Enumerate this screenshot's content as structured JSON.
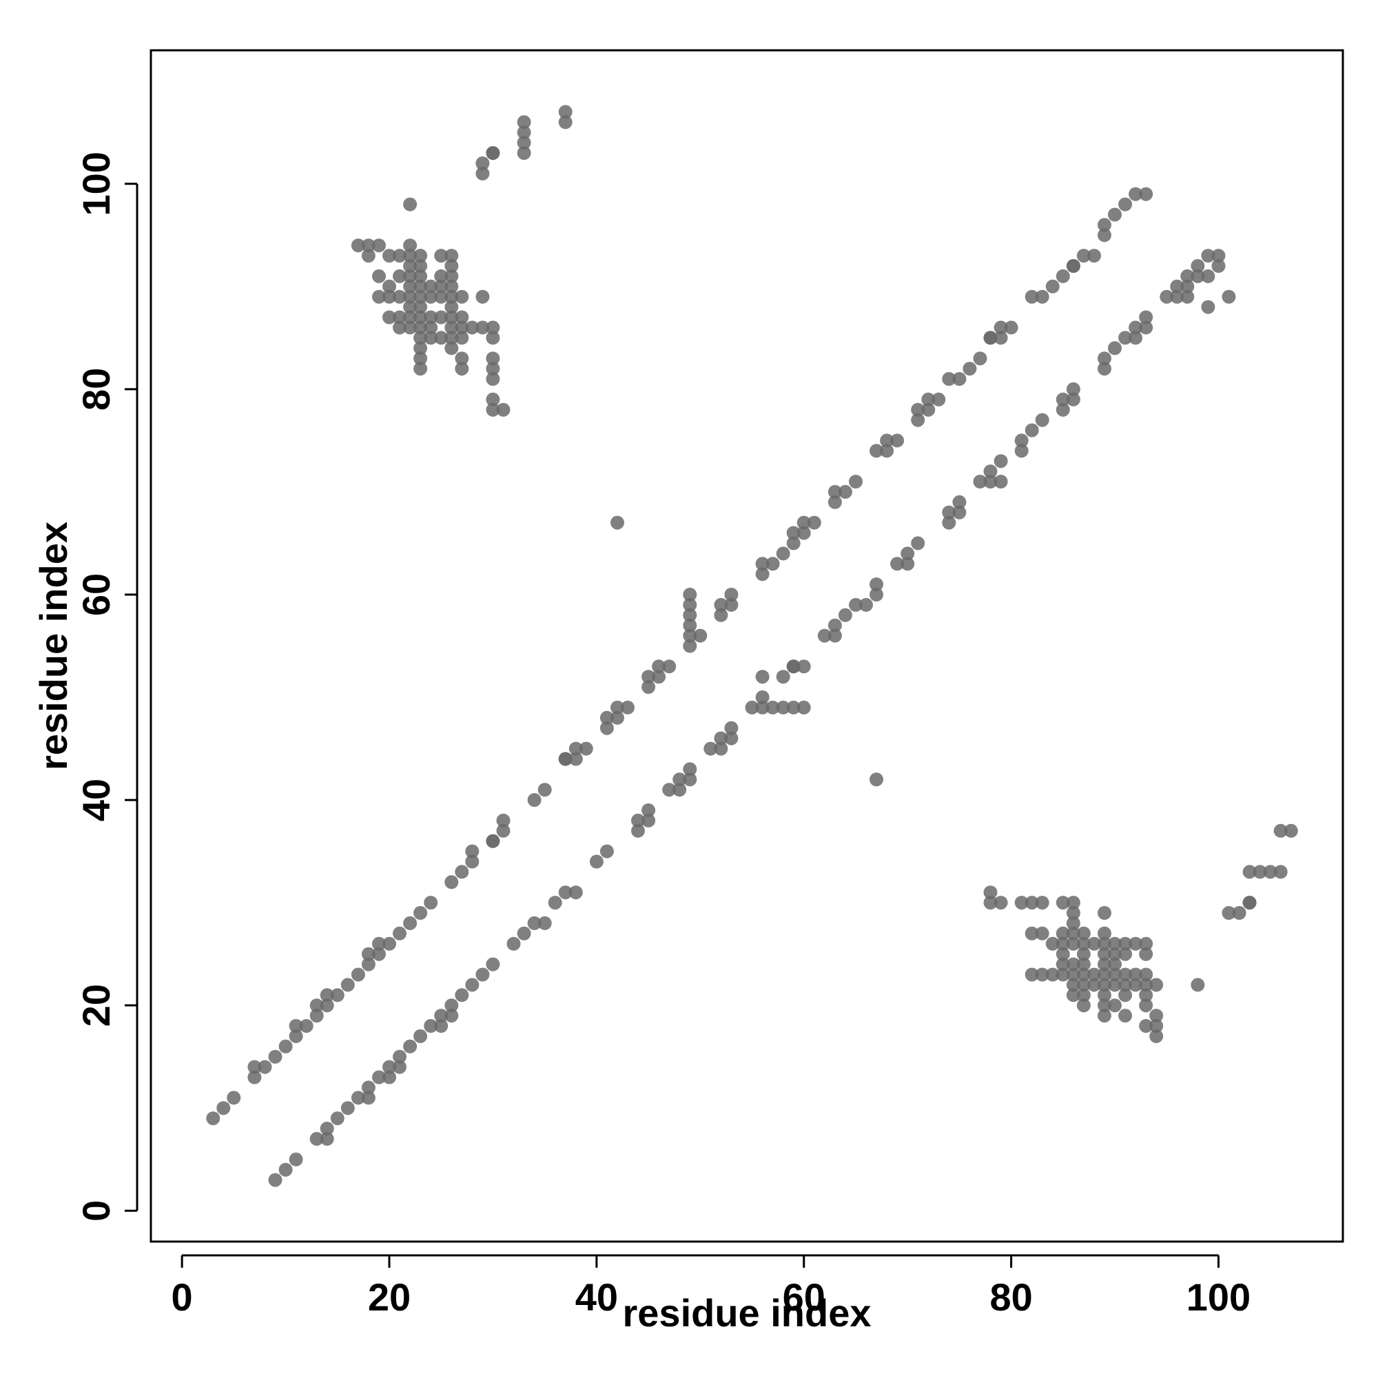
{
  "chart_data": {
    "type": "scatter",
    "title": "",
    "xlabel": "residue index",
    "ylabel": "residue index",
    "xlim": [
      -3,
      112
    ],
    "ylim": [
      -3,
      113
    ],
    "xticks": [
      0,
      20,
      40,
      60,
      80,
      100
    ],
    "yticks": [
      0,
      20,
      40,
      60,
      80,
      100
    ],
    "grid": false,
    "marker_color": "#6a6a6a",
    "marker_opacity": 0.85,
    "frame_color": "#000000",
    "series": [
      {
        "x": [
          3,
          4,
          5,
          7,
          7,
          8,
          9,
          10,
          11,
          11,
          12,
          13,
          13,
          14,
          14,
          15,
          16,
          17,
          18,
          18,
          19,
          19,
          20,
          21,
          22,
          23,
          24,
          26,
          27,
          28,
          28,
          30,
          30,
          31,
          31,
          34,
          35,
          37,
          37,
          38,
          38,
          39,
          41,
          41,
          42,
          42,
          43,
          45,
          45,
          46,
          46,
          47,
          49,
          49,
          49,
          49,
          49,
          49,
          50,
          52,
          52,
          53,
          53,
          56,
          56,
          57,
          58,
          59,
          59,
          60,
          60,
          61,
          63,
          63,
          64,
          65,
          67,
          68,
          68,
          69,
          71,
          71,
          72,
          72,
          73,
          74,
          75,
          76,
          77,
          78,
          78,
          79,
          79,
          80,
          82,
          83,
          84,
          85,
          86,
          86,
          87,
          88,
          89,
          89,
          90,
          91,
          92,
          93
        ],
        "y": [
          9,
          10,
          11,
          13,
          14,
          14,
          15,
          16,
          17,
          18,
          18,
          19,
          20,
          20,
          21,
          21,
          22,
          23,
          24,
          25,
          25,
          26,
          26,
          27,
          28,
          29,
          30,
          32,
          33,
          34,
          35,
          36,
          36,
          37,
          38,
          40,
          41,
          44,
          44,
          44,
          45,
          45,
          47,
          48,
          48,
          49,
          49,
          51,
          52,
          52,
          53,
          53,
          55,
          56,
          57,
          58,
          59,
          60,
          56,
          58,
          59,
          59,
          60,
          62,
          63,
          63,
          64,
          65,
          66,
          66,
          67,
          67,
          69,
          70,
          70,
          71,
          74,
          74,
          75,
          75,
          77,
          78,
          78,
          79,
          79,
          81,
          81,
          82,
          83,
          85,
          85,
          85,
          86,
          86,
          89,
          89,
          90,
          91,
          92,
          92,
          93,
          93,
          95,
          96,
          97,
          98,
          99,
          99
        ]
      },
      {
        "x": [
          9,
          10,
          11,
          13,
          14,
          14,
          15,
          16,
          17,
          18,
          18,
          19,
          20,
          20,
          21,
          21,
          22,
          23,
          24,
          25,
          25,
          26,
          26,
          27,
          28,
          29,
          30,
          32,
          33,
          34,
          35,
          36,
          37,
          38,
          40,
          41,
          44,
          44,
          45,
          45,
          47,
          48,
          48,
          49,
          49,
          51,
          52,
          52,
          53,
          53,
          55,
          56,
          56,
          57,
          58,
          59,
          60,
          56,
          58,
          59,
          59,
          60,
          62,
          63,
          63,
          64,
          65,
          66,
          67,
          67,
          69,
          70,
          70,
          71,
          74,
          74,
          75,
          75,
          77,
          78,
          78,
          79,
          79,
          81,
          81,
          82,
          83,
          85,
          85,
          86,
          86,
          89,
          89,
          90,
          91,
          92,
          92,
          93,
          93,
          95,
          96,
          96,
          97,
          97,
          97,
          98,
          98,
          99,
          99,
          100,
          100,
          101,
          99
        ],
        "y": [
          3,
          4,
          5,
          7,
          7,
          8,
          9,
          10,
          11,
          11,
          12,
          13,
          13,
          14,
          14,
          15,
          16,
          17,
          18,
          18,
          19,
          19,
          20,
          21,
          22,
          23,
          24,
          26,
          27,
          28,
          28,
          30,
          31,
          31,
          34,
          35,
          37,
          38,
          38,
          39,
          41,
          41,
          42,
          42,
          43,
          45,
          45,
          46,
          46,
          47,
          49,
          49,
          50,
          49,
          49,
          49,
          49,
          52,
          52,
          53,
          53,
          53,
          56,
          56,
          57,
          58,
          59,
          59,
          60,
          61,
          63,
          63,
          64,
          65,
          67,
          68,
          68,
          69,
          71,
          71,
          72,
          71,
          73,
          74,
          75,
          76,
          77,
          78,
          79,
          79,
          80,
          82,
          83,
          84,
          85,
          85,
          86,
          86,
          87,
          89,
          89,
          90,
          89,
          90,
          91,
          91,
          92,
          91,
          93,
          92,
          93,
          89,
          88
        ]
      },
      {
        "x": [
          17,
          18,
          18,
          19,
          19,
          19,
          20,
          20,
          20,
          20,
          21,
          21,
          21,
          21,
          21,
          22,
          22,
          22,
          22,
          22,
          22,
          22,
          22,
          22,
          23,
          23,
          23,
          23,
          23,
          23,
          23,
          23,
          23,
          23,
          23,
          23,
          24,
          24,
          24,
          24,
          24,
          25,
          25,
          25,
          25,
          25,
          25,
          26,
          26,
          26,
          26,
          26,
          26,
          26,
          26,
          26,
          26,
          27,
          27,
          27,
          27,
          27,
          27,
          28,
          29,
          29,
          30,
          30,
          30,
          30,
          30,
          30,
          30,
          31,
          22,
          29,
          29,
          30,
          30,
          33,
          33,
          33,
          33,
          37,
          37,
          42
        ],
        "y": [
          94,
          94,
          93,
          94,
          91,
          89,
          93,
          90,
          89,
          87,
          93,
          91,
          89,
          87,
          86,
          94,
          93,
          92,
          91,
          90,
          89,
          88,
          87,
          86,
          93,
          92,
          91,
          90,
          89,
          88,
          87,
          86,
          85,
          84,
          83,
          82,
          90,
          89,
          87,
          86,
          85,
          93,
          91,
          90,
          89,
          87,
          85,
          93,
          92,
          91,
          90,
          89,
          88,
          87,
          86,
          85,
          84,
          89,
          87,
          86,
          85,
          83,
          82,
          86,
          89,
          86,
          86,
          85,
          83,
          82,
          81,
          79,
          78,
          78,
          98,
          101,
          102,
          103,
          103,
          103,
          104,
          105,
          106,
          106,
          107,
          67
        ]
      },
      {
        "x": [
          94,
          94,
          93,
          94,
          91,
          89,
          93,
          90,
          89,
          87,
          93,
          91,
          89,
          87,
          86,
          94,
          93,
          92,
          91,
          90,
          89,
          88,
          87,
          86,
          93,
          92,
          91,
          90,
          89,
          88,
          87,
          86,
          85,
          84,
          83,
          82,
          90,
          89,
          87,
          86,
          85,
          93,
          91,
          90,
          89,
          87,
          85,
          93,
          92,
          91,
          90,
          89,
          88,
          87,
          86,
          85,
          84,
          89,
          87,
          86,
          85,
          83,
          82,
          86,
          89,
          86,
          86,
          85,
          83,
          82,
          81,
          79,
          78,
          78,
          98,
          101,
          102,
          103,
          103,
          103,
          104,
          105,
          106,
          106,
          107,
          67
        ],
        "y": [
          17,
          18,
          18,
          19,
          19,
          19,
          20,
          20,
          20,
          20,
          21,
          21,
          21,
          21,
          21,
          22,
          22,
          22,
          22,
          22,
          22,
          22,
          22,
          22,
          23,
          23,
          23,
          23,
          23,
          23,
          23,
          23,
          23,
          23,
          23,
          23,
          24,
          24,
          24,
          24,
          24,
          25,
          25,
          25,
          25,
          25,
          25,
          26,
          26,
          26,
          26,
          26,
          26,
          26,
          26,
          26,
          26,
          27,
          27,
          27,
          27,
          27,
          27,
          28,
          29,
          29,
          30,
          30,
          30,
          30,
          30,
          30,
          30,
          31,
          22,
          29,
          29,
          30,
          30,
          33,
          33,
          33,
          33,
          37,
          37,
          42
        ]
      }
    ]
  }
}
